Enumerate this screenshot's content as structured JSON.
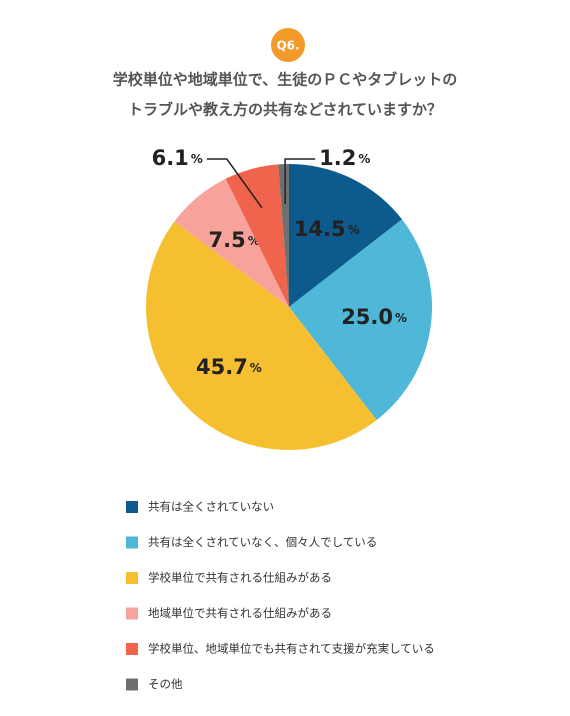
{
  "chart_data": {
    "type": "pie",
    "badge": "Q6.",
    "title_lines": [
      "学校単位や地域単位で、生徒のＰＣやタブレットの",
      "トラブルや教え方の共有などされていますか？"
    ],
    "unit": "%",
    "categories": [
      "共有は全くされていない",
      "共有は全くされていなく、個々人でしている",
      "学校単位で共有される仕組みがある",
      "地域単位で共有される仕組みがある",
      "学校単位、地域単位でも共有されて支援が充実している",
      "その他"
    ],
    "values": [
      14.5,
      25.0,
      45.7,
      7.5,
      6.1,
      1.2
    ],
    "value_labels": [
      "14.5",
      "25.0",
      "45.7",
      "7.5",
      "6.1",
      "1.2"
    ],
    "colors": [
      "#0d5a8c",
      "#4fb8d9",
      "#f5bf30",
      "#f7a29b",
      "#f0634c",
      "#6f6f6f"
    ]
  }
}
